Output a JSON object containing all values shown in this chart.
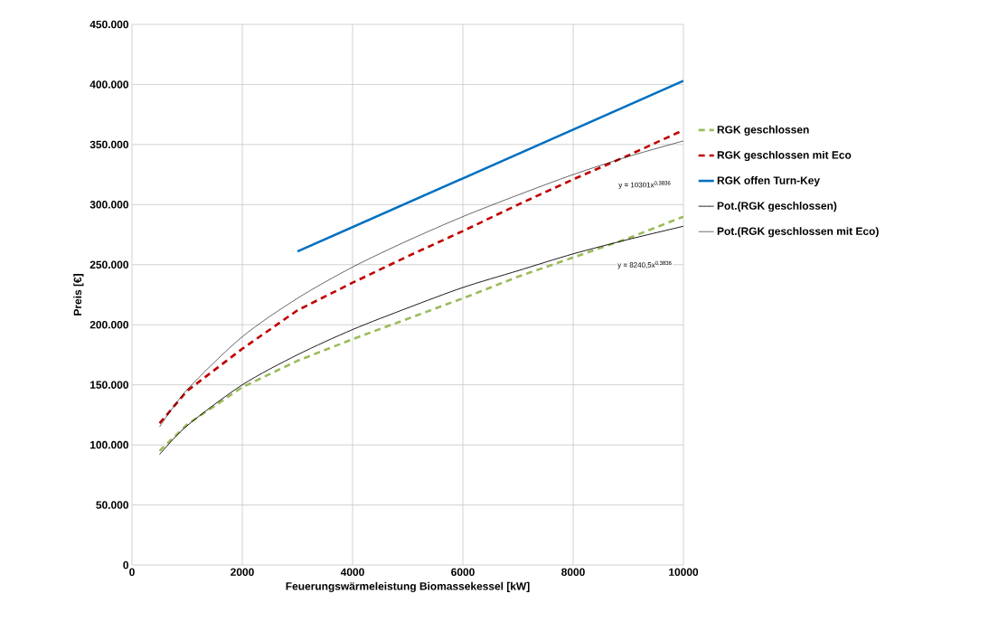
{
  "chart_data": {
    "type": "line",
    "xlabel": "Feuerungswärmeleistung Biomassekessel  [kW]",
    "ylabel": "Preis [€]",
    "xlim": [
      0,
      10000
    ],
    "xticks": [
      0,
      2000,
      4000,
      6000,
      8000,
      10000
    ],
    "ylim": [
      0,
      450000
    ],
    "yticks": [
      {
        "value": 0,
        "label": "0"
      },
      {
        "value": 50000,
        "label": "50.000"
      },
      {
        "value": 100000,
        "label": "100.000"
      },
      {
        "value": 150000,
        "label": "150.000"
      },
      {
        "value": 200000,
        "label": "200.000"
      },
      {
        "value": 250000,
        "label": "250.000"
      },
      {
        "value": 300000,
        "label": "300.000"
      },
      {
        "value": 350000,
        "label": "350.000"
      },
      {
        "value": 400000,
        "label": "400.000"
      },
      {
        "value": 450000,
        "label": "450.000"
      }
    ],
    "grid": true,
    "legend": "right",
    "marker": "none",
    "series": [
      {
        "name": "RGK geschlossen",
        "color": "#9bbb59",
        "line_style": "dashed",
        "x": [
          500,
          1000,
          2000,
          3000,
          4000,
          5000,
          6000,
          7000,
          8000,
          9000,
          10000
        ],
        "values": [
          95000,
          117000,
          148000,
          170000,
          188000,
          205000,
          222000,
          240000,
          256000,
          272000,
          290000
        ]
      },
      {
        "name": "RGK geschlossen mit Eco",
        "color": "#c00000",
        "line_style": "dashed",
        "x": [
          500,
          1000,
          2000,
          3000,
          4000,
          5000,
          6000,
          7000,
          8000,
          9000,
          10000
        ],
        "values": [
          118000,
          145000,
          180000,
          212000,
          235000,
          257000,
          278000,
          300000,
          321000,
          341000,
          362000
        ]
      },
      {
        "name": "RGK offen Turn-Key",
        "color": "#0070c0",
        "line_style": "solid",
        "x": [
          3000,
          10000
        ],
        "values": [
          261000,
          403000
        ]
      },
      {
        "name": "Pot.(RGK geschlossen)",
        "color": "#000000",
        "line_style": "solid",
        "x": [
          500,
          1000,
          2000,
          3000,
          4000,
          5000,
          6000,
          7000,
          8000,
          9000,
          10000
        ],
        "values": [
          92000,
          116000,
          150000,
          175000,
          196000,
          214000,
          231000,
          245000,
          259000,
          271000,
          282000
        ]
      },
      {
        "name": "Pot.(RGK geschlossen mit Eco)",
        "color": "#000000",
        "line_style": "solid",
        "x": [
          500,
          1000,
          2000,
          3000,
          4000,
          5000,
          6000,
          7000,
          8000,
          9000,
          10000
        ],
        "values": [
          115000,
          146000,
          190000,
          222000,
          248000,
          270000,
          290000,
          308000,
          325000,
          340000,
          353000
        ]
      }
    ],
    "annotations": [
      "y = 10301x$^{0,3836}$",
      "y = 8240,5x$^{0,3836}$"
    ]
  }
}
